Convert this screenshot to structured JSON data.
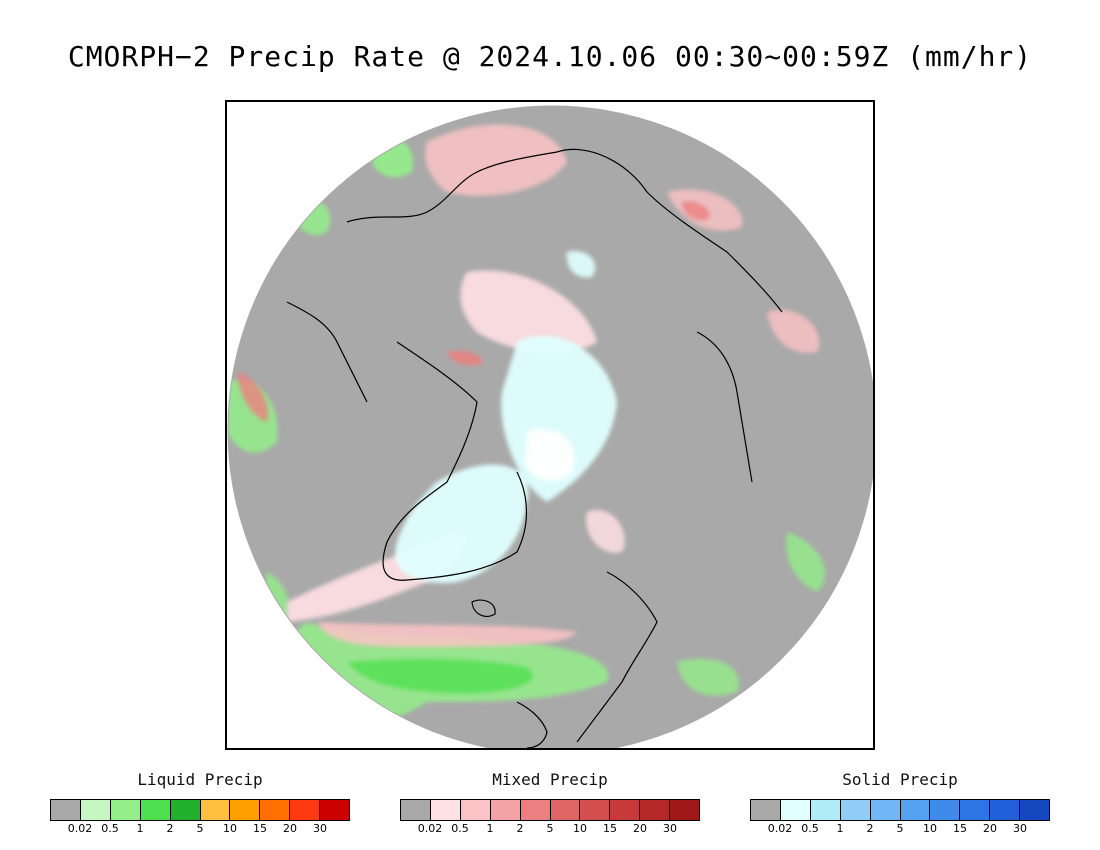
{
  "title": "CMORPH−2 Precip Rate @ 2024.10.06 00:30~00:59Z (mm/hr)",
  "map": {
    "projection": "north-polar-stereographic",
    "background_color": "#a9a9a9",
    "outside_color": "#ffffff",
    "coastline_color": "#000000"
  },
  "legends": [
    {
      "title": "Liquid Precip",
      "colors": [
        "#a9a9a9",
        "#c6f7c0",
        "#94ee8a",
        "#4fe050",
        "#21b02e",
        "#ffc040",
        "#ffa000",
        "#ff7000",
        "#ff3a10",
        "#cc0000"
      ],
      "ticks": [
        "0.02",
        "0.5",
        "1",
        "2",
        "5",
        "10",
        "15",
        "20",
        "30"
      ]
    },
    {
      "title": "Mixed Precip",
      "colors": [
        "#a9a9a9",
        "#ffe0e4",
        "#fcc3c6",
        "#f5a2a6",
        "#ec8080",
        "#e06666",
        "#d45050",
        "#c83a3a",
        "#b52828",
        "#a01818"
      ],
      "ticks": [
        "0.02",
        "0.5",
        "1",
        "2",
        "5",
        "10",
        "15",
        "20",
        "30"
      ]
    },
    {
      "title": "Solid Precip",
      "colors": [
        "#a9a9a9",
        "#e0ffff",
        "#b0ecf7",
        "#90cdf7",
        "#70b8f5",
        "#55a2f0",
        "#3e8bec",
        "#2d74e6",
        "#2060d8",
        "#1448c0"
      ],
      "ticks": [
        "0.02",
        "0.5",
        "1",
        "2",
        "5",
        "10",
        "15",
        "20",
        "30"
      ]
    }
  ]
}
